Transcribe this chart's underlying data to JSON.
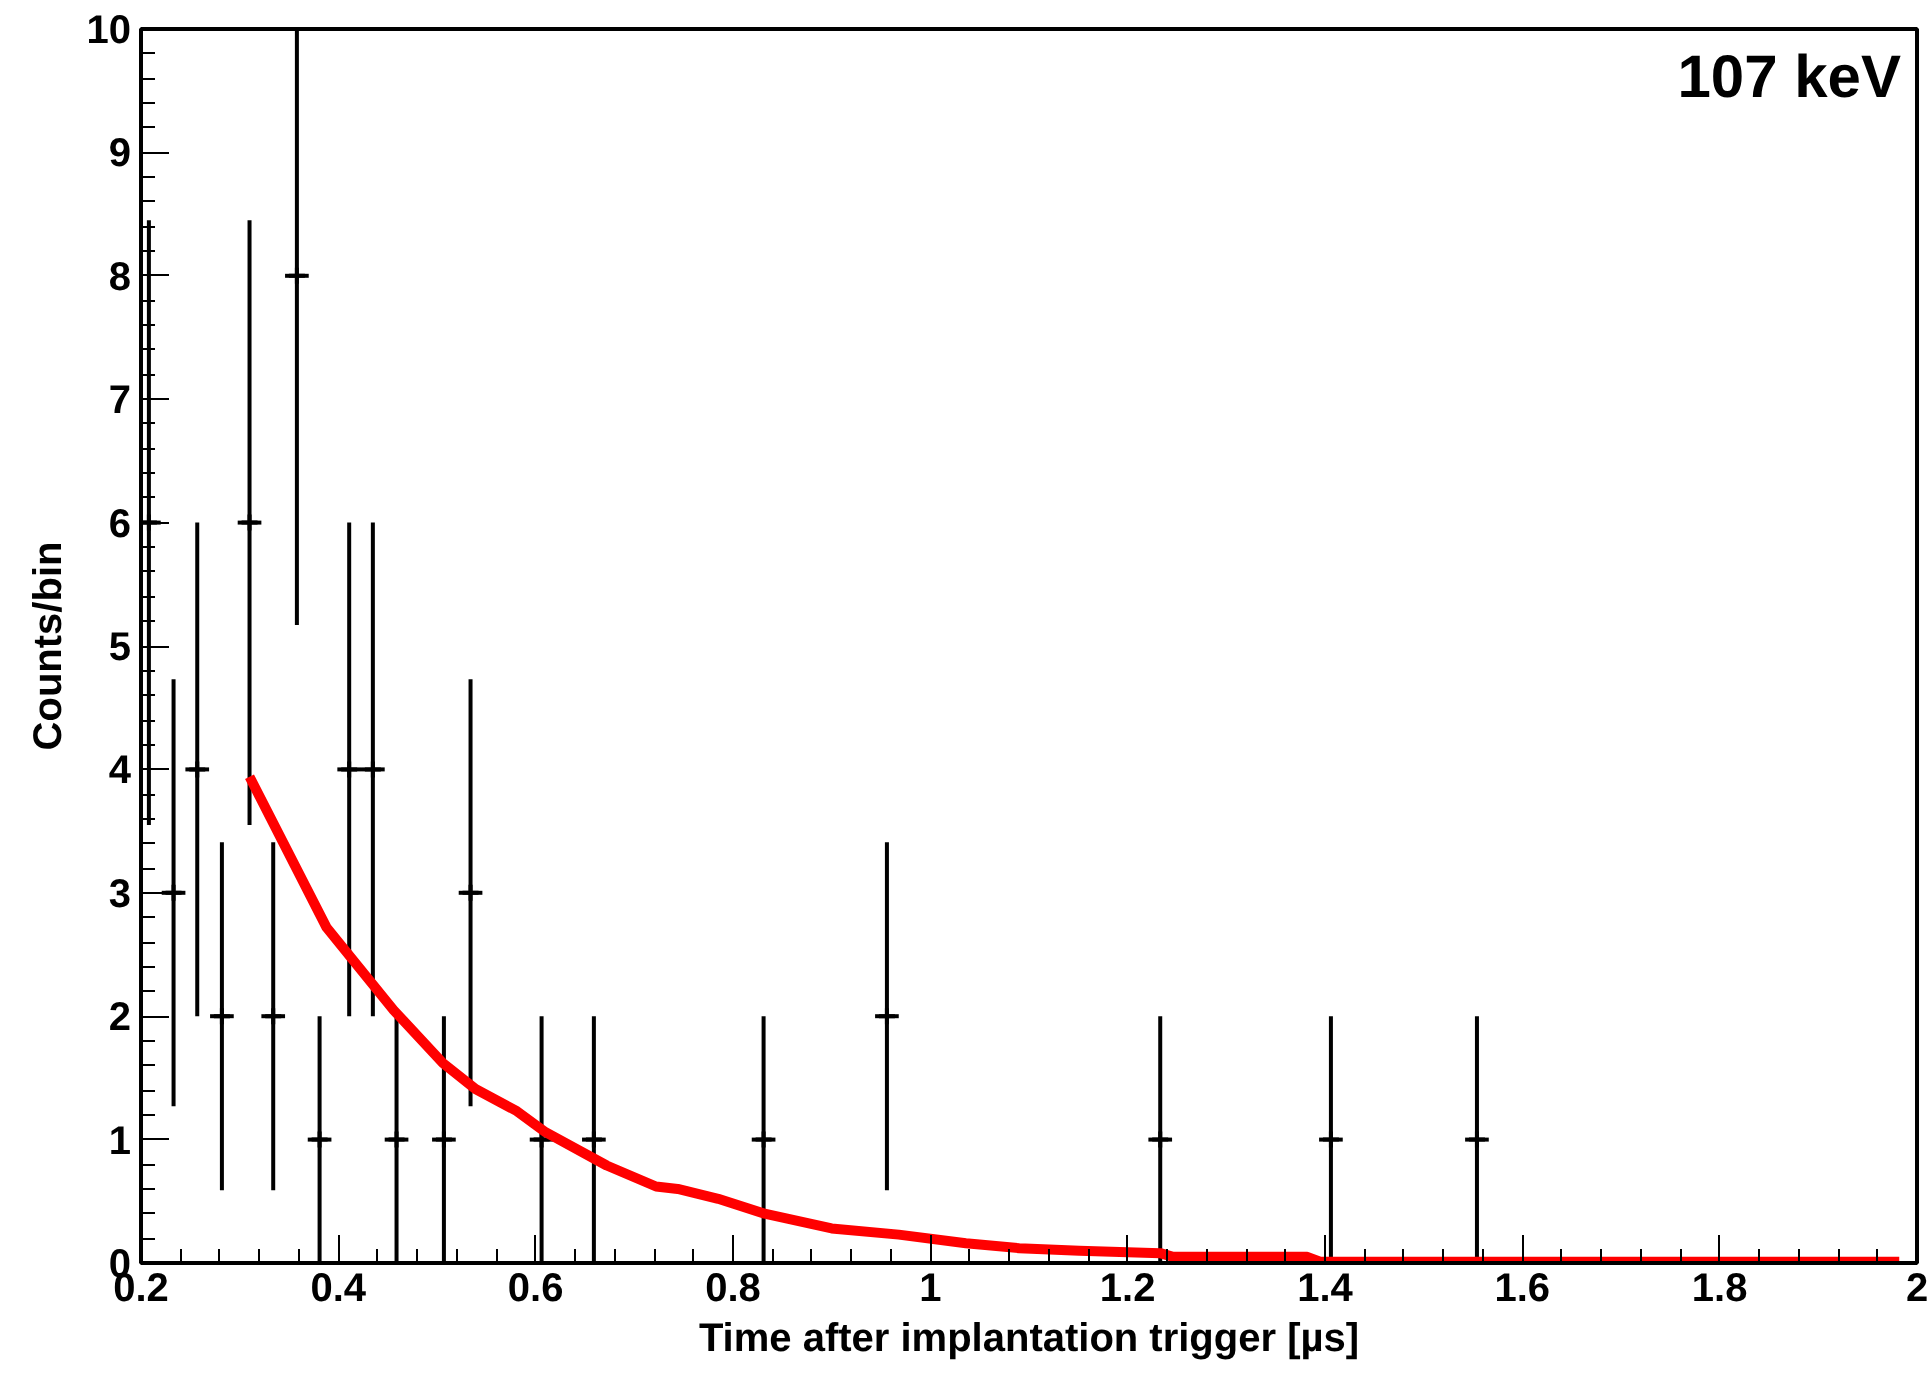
{
  "chart_data": {
    "type": "scatter",
    "xlabel": "Time after implantation trigger [µs]",
    "ylabel": "Counts/bin",
    "annotations": [
      "107 keV"
    ],
    "xlim": [
      0.2,
      2.0
    ],
    "ylim": [
      0,
      10
    ],
    "xticks": [
      {
        "value": 0.2,
        "label": "0.2"
      },
      {
        "value": 0.4,
        "label": "0.4"
      },
      {
        "value": 0.6,
        "label": "0.6"
      },
      {
        "value": 0.8,
        "label": "0.8"
      },
      {
        "value": 1.0,
        "label": "1"
      },
      {
        "value": 1.2,
        "label": "1.2"
      },
      {
        "value": 1.4,
        "label": "1.4"
      },
      {
        "value": 1.6,
        "label": "1.6"
      },
      {
        "value": 1.8,
        "label": "1.8"
      },
      {
        "value": 2.0,
        "label": "2"
      }
    ],
    "yticks": [
      0,
      1,
      2,
      3,
      4,
      5,
      6,
      7,
      8,
      9,
      10
    ],
    "grid": false,
    "series": [
      {
        "color": "#000000",
        "marker": "cross",
        "x": [
          0.208,
          0.233,
          0.257,
          0.282,
          0.31,
          0.334,
          0.358,
          0.381,
          0.411,
          0.435,
          0.459,
          0.507,
          0.534,
          0.606,
          0.659,
          0.831,
          0.956,
          1.233,
          1.406,
          1.554
        ],
        "values": [
          6,
          3,
          4,
          2,
          6,
          2,
          8,
          1,
          4,
          4,
          1,
          1,
          3,
          1,
          1,
          1,
          2,
          1,
          1,
          1
        ],
        "errors": [
          2.45,
          1.73,
          2,
          1.41,
          2.45,
          1.41,
          [
            5.17,
            10
          ],
          1,
          2,
          2,
          1,
          1,
          1.73,
          1,
          1,
          1,
          1.41,
          1,
          1,
          1
        ],
        "xerrors": [
          0.012,
          0.012,
          0.012,
          0.012,
          0.012,
          0.012,
          0.012,
          0.012,
          0.012,
          0.012,
          0.012,
          0.012,
          0.012,
          0.012,
          0.012,
          0.012,
          0.012,
          0.012,
          0.012,
          0.012
        ]
      },
      {
        "type": "line",
        "color": "#ff0000",
        "marker": "none",
        "x": [
          0.31,
          0.388,
          0.456,
          0.506,
          0.539,
          0.581,
          0.61,
          0.672,
          0.722,
          0.744,
          0.785,
          0.832,
          0.9,
          0.968,
          1.036,
          1.09,
          1.151,
          1.233,
          1.246,
          1.382,
          1.395,
          1.982
        ],
        "values": [
          3.94,
          2.72,
          2.05,
          1.62,
          1.41,
          1.23,
          1.06,
          0.79,
          0.62,
          0.6,
          0.52,
          0.4,
          0.28,
          0.23,
          0.16,
          0.12,
          0.1,
          0.08,
          0.05,
          0.05,
          0.01,
          0.01
        ]
      }
    ]
  }
}
